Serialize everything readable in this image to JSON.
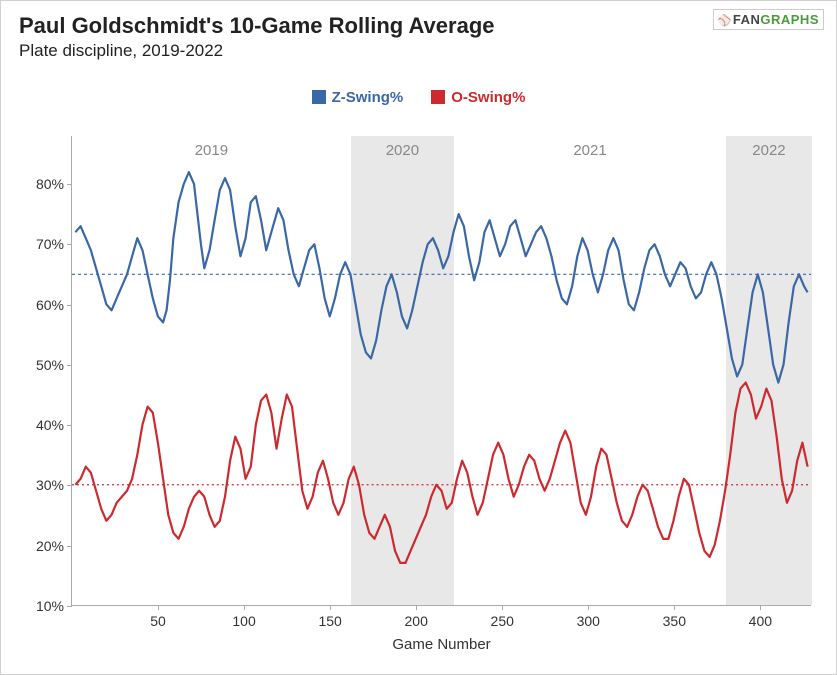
{
  "title": "Paul Goldschmidt's 10-Game Rolling Average",
  "subtitle": "Plate discipline, 2019-2022",
  "logo": {
    "fan": "FAN",
    "graphs": "GRAPHS"
  },
  "x_axis": {
    "title": "Game Number",
    "min": 0,
    "max": 430,
    "ticks": [
      50,
      100,
      150,
      200,
      250,
      300,
      350,
      400
    ]
  },
  "y_axis": {
    "min": 10,
    "max": 88,
    "ticks": [
      10,
      20,
      30,
      40,
      50,
      60,
      70,
      80
    ],
    "tick_suffix": "%"
  },
  "seasons": [
    {
      "label": "2019",
      "start": 0,
      "end": 162,
      "shaded": false
    },
    {
      "label": "2020",
      "start": 162,
      "end": 222,
      "shaded": true
    },
    {
      "label": "2021",
      "start": 222,
      "end": 380,
      "shaded": false
    },
    {
      "label": "2022",
      "start": 380,
      "end": 430,
      "shaded": true
    }
  ],
  "season_band_color": "#e8e8e8",
  "background_color": "#ffffff",
  "series": [
    {
      "name": "Z-Swing%",
      "color": "#3a67a6",
      "reference": 65,
      "reference_dash": "3,3",
      "line_width": 2.2,
      "data": [
        [
          2,
          72
        ],
        [
          5,
          73
        ],
        [
          8,
          71
        ],
        [
          11,
          69
        ],
        [
          14,
          66
        ],
        [
          17,
          63
        ],
        [
          20,
          60
        ],
        [
          23,
          59
        ],
        [
          26,
          61
        ],
        [
          29,
          63
        ],
        [
          32,
          65
        ],
        [
          35,
          68
        ],
        [
          38,
          71
        ],
        [
          41,
          69
        ],
        [
          44,
          65
        ],
        [
          47,
          61
        ],
        [
          50,
          58
        ],
        [
          53,
          57
        ],
        [
          55,
          59
        ],
        [
          57,
          64
        ],
        [
          59,
          71
        ],
        [
          62,
          77
        ],
        [
          65,
          80
        ],
        [
          68,
          82
        ],
        [
          71,
          80
        ],
        [
          73,
          75
        ],
        [
          75,
          70
        ],
        [
          77,
          66
        ],
        [
          80,
          69
        ],
        [
          83,
          74
        ],
        [
          86,
          79
        ],
        [
          89,
          81
        ],
        [
          92,
          79
        ],
        [
          95,
          73
        ],
        [
          98,
          68
        ],
        [
          101,
          71
        ],
        [
          104,
          77
        ],
        [
          107,
          78
        ],
        [
          110,
          74
        ],
        [
          113,
          69
        ],
        [
          116,
          72
        ],
        [
          120,
          76
        ],
        [
          123,
          74
        ],
        [
          126,
          69
        ],
        [
          129,
          65
        ],
        [
          132,
          63
        ],
        [
          135,
          66
        ],
        [
          138,
          69
        ],
        [
          141,
          70
        ],
        [
          144,
          66
        ],
        [
          147,
          61
        ],
        [
          150,
          58
        ],
        [
          153,
          61
        ],
        [
          156,
          65
        ],
        [
          159,
          67
        ],
        [
          162,
          65
        ],
        [
          165,
          60
        ],
        [
          168,
          55
        ],
        [
          171,
          52
        ],
        [
          174,
          51
        ],
        [
          177,
          54
        ],
        [
          180,
          59
        ],
        [
          183,
          63
        ],
        [
          186,
          65
        ],
        [
          189,
          62
        ],
        [
          192,
          58
        ],
        [
          195,
          56
        ],
        [
          198,
          59
        ],
        [
          201,
          63
        ],
        [
          204,
          67
        ],
        [
          207,
          70
        ],
        [
          210,
          71
        ],
        [
          213,
          69
        ],
        [
          216,
          66
        ],
        [
          219,
          68
        ],
        [
          222,
          72
        ],
        [
          225,
          75
        ],
        [
          228,
          73
        ],
        [
          231,
          68
        ],
        [
          234,
          64
        ],
        [
          237,
          67
        ],
        [
          240,
          72
        ],
        [
          243,
          74
        ],
        [
          246,
          71
        ],
        [
          249,
          68
        ],
        [
          252,
          70
        ],
        [
          255,
          73
        ],
        [
          258,
          74
        ],
        [
          261,
          71
        ],
        [
          264,
          68
        ],
        [
          267,
          70
        ],
        [
          270,
          72
        ],
        [
          273,
          73
        ],
        [
          276,
          71
        ],
        [
          279,
          68
        ],
        [
          282,
          64
        ],
        [
          285,
          61
        ],
        [
          288,
          60
        ],
        [
          291,
          63
        ],
        [
          294,
          68
        ],
        [
          297,
          71
        ],
        [
          300,
          69
        ],
        [
          303,
          65
        ],
        [
          306,
          62
        ],
        [
          309,
          65
        ],
        [
          312,
          69
        ],
        [
          315,
          71
        ],
        [
          318,
          69
        ],
        [
          321,
          64
        ],
        [
          324,
          60
        ],
        [
          327,
          59
        ],
        [
          330,
          62
        ],
        [
          333,
          66
        ],
        [
          336,
          69
        ],
        [
          339,
          70
        ],
        [
          342,
          68
        ],
        [
          345,
          65
        ],
        [
          348,
          63
        ],
        [
          351,
          65
        ],
        [
          354,
          67
        ],
        [
          357,
          66
        ],
        [
          360,
          63
        ],
        [
          363,
          61
        ],
        [
          366,
          62
        ],
        [
          369,
          65
        ],
        [
          372,
          67
        ],
        [
          375,
          65
        ],
        [
          378,
          61
        ],
        [
          381,
          56
        ],
        [
          384,
          51
        ],
        [
          387,
          48
        ],
        [
          390,
          50
        ],
        [
          393,
          56
        ],
        [
          396,
          62
        ],
        [
          399,
          65
        ],
        [
          402,
          62
        ],
        [
          405,
          56
        ],
        [
          408,
          50
        ],
        [
          411,
          47
        ],
        [
          414,
          50
        ],
        [
          417,
          57
        ],
        [
          420,
          63
        ],
        [
          423,
          65
        ],
        [
          426,
          63
        ],
        [
          428,
          62
        ]
      ]
    },
    {
      "name": "O-Swing%",
      "color": "#cc2a2e",
      "reference": 30,
      "reference_dash": "2,3",
      "line_width": 2.2,
      "data": [
        [
          2,
          30
        ],
        [
          5,
          31
        ],
        [
          8,
          33
        ],
        [
          11,
          32
        ],
        [
          14,
          29
        ],
        [
          17,
          26
        ],
        [
          20,
          24
        ],
        [
          23,
          25
        ],
        [
          26,
          27
        ],
        [
          29,
          28
        ],
        [
          32,
          29
        ],
        [
          35,
          31
        ],
        [
          38,
          35
        ],
        [
          41,
          40
        ],
        [
          44,
          43
        ],
        [
          47,
          42
        ],
        [
          50,
          37
        ],
        [
          53,
          31
        ],
        [
          56,
          25
        ],
        [
          59,
          22
        ],
        [
          62,
          21
        ],
        [
          65,
          23
        ],
        [
          68,
          26
        ],
        [
          71,
          28
        ],
        [
          74,
          29
        ],
        [
          77,
          28
        ],
        [
          80,
          25
        ],
        [
          83,
          23
        ],
        [
          86,
          24
        ],
        [
          89,
          28
        ],
        [
          92,
          34
        ],
        [
          95,
          38
        ],
        [
          98,
          36
        ],
        [
          101,
          31
        ],
        [
          104,
          33
        ],
        [
          107,
          40
        ],
        [
          110,
          44
        ],
        [
          113,
          45
        ],
        [
          116,
          42
        ],
        [
          119,
          36
        ],
        [
          122,
          41
        ],
        [
          125,
          45
        ],
        [
          128,
          43
        ],
        [
          131,
          36
        ],
        [
          134,
          29
        ],
        [
          137,
          26
        ],
        [
          140,
          28
        ],
        [
          143,
          32
        ],
        [
          146,
          34
        ],
        [
          149,
          31
        ],
        [
          152,
          27
        ],
        [
          155,
          25
        ],
        [
          158,
          27
        ],
        [
          161,
          31
        ],
        [
          164,
          33
        ],
        [
          167,
          30
        ],
        [
          170,
          25
        ],
        [
          173,
          22
        ],
        [
          176,
          21
        ],
        [
          179,
          23
        ],
        [
          182,
          25
        ],
        [
          185,
          23
        ],
        [
          188,
          19
        ],
        [
          191,
          17
        ],
        [
          194,
          17
        ],
        [
          197,
          19
        ],
        [
          200,
          21
        ],
        [
          203,
          23
        ],
        [
          206,
          25
        ],
        [
          209,
          28
        ],
        [
          212,
          30
        ],
        [
          215,
          29
        ],
        [
          218,
          26
        ],
        [
          221,
          27
        ],
        [
          224,
          31
        ],
        [
          227,
          34
        ],
        [
          230,
          32
        ],
        [
          233,
          28
        ],
        [
          236,
          25
        ],
        [
          239,
          27
        ],
        [
          242,
          31
        ],
        [
          245,
          35
        ],
        [
          248,
          37
        ],
        [
          251,
          35
        ],
        [
          254,
          31
        ],
        [
          257,
          28
        ],
        [
          260,
          30
        ],
        [
          263,
          33
        ],
        [
          266,
          35
        ],
        [
          269,
          34
        ],
        [
          272,
          31
        ],
        [
          275,
          29
        ],
        [
          278,
          31
        ],
        [
          281,
          34
        ],
        [
          284,
          37
        ],
        [
          287,
          39
        ],
        [
          290,
          37
        ],
        [
          293,
          32
        ],
        [
          296,
          27
        ],
        [
          299,
          25
        ],
        [
          302,
          28
        ],
        [
          305,
          33
        ],
        [
          308,
          36
        ],
        [
          311,
          35
        ],
        [
          314,
          31
        ],
        [
          317,
          27
        ],
        [
          320,
          24
        ],
        [
          323,
          23
        ],
        [
          326,
          25
        ],
        [
          329,
          28
        ],
        [
          332,
          30
        ],
        [
          335,
          29
        ],
        [
          338,
          26
        ],
        [
          341,
          23
        ],
        [
          344,
          21
        ],
        [
          347,
          21
        ],
        [
          350,
          24
        ],
        [
          353,
          28
        ],
        [
          356,
          31
        ],
        [
          359,
          30
        ],
        [
          362,
          26
        ],
        [
          365,
          22
        ],
        [
          368,
          19
        ],
        [
          371,
          18
        ],
        [
          374,
          20
        ],
        [
          377,
          24
        ],
        [
          380,
          29
        ],
        [
          383,
          35
        ],
        [
          386,
          42
        ],
        [
          389,
          46
        ],
        [
          392,
          47
        ],
        [
          395,
          45
        ],
        [
          398,
          41
        ],
        [
          401,
          43
        ],
        [
          404,
          46
        ],
        [
          407,
          44
        ],
        [
          410,
          38
        ],
        [
          413,
          31
        ],
        [
          416,
          27
        ],
        [
          419,
          29
        ],
        [
          422,
          34
        ],
        [
          425,
          37
        ],
        [
          428,
          33
        ]
      ]
    }
  ],
  "legend_text_color": "#333333",
  "axis_text_color": "#333333",
  "title_font_size": 22,
  "subtitle_font_size": 17
}
